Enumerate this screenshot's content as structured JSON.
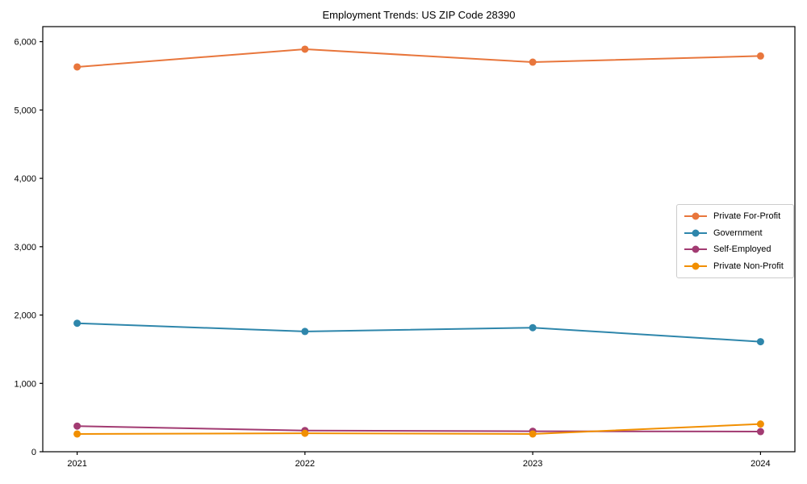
{
  "chart_data": {
    "type": "line",
    "title": "Employment Trends: US ZIP Code 28390",
    "categories": [
      "2021",
      "2022",
      "2023",
      "2024"
    ],
    "series": [
      {
        "name": "Private For-Profit",
        "color": "#E8763C",
        "values": [
          5630,
          5890,
          5700,
          5790
        ]
      },
      {
        "name": "Government",
        "color": "#2E86AB",
        "values": [
          1880,
          1760,
          1815,
          1610
        ]
      },
      {
        "name": "Self-Employed",
        "color": "#A23B72",
        "values": [
          375,
          310,
          300,
          295
        ]
      },
      {
        "name": "Private Non-Profit",
        "color": "#F18F01",
        "values": [
          260,
          270,
          260,
          405
        ]
      }
    ],
    "xlabel": "",
    "ylabel": "",
    "ylim": [
      0,
      6220
    ],
    "yticks": [
      0,
      1000,
      2000,
      3000,
      4000,
      5000,
      6000
    ],
    "ytick_labels": [
      "0",
      "1,000",
      "2,000",
      "3,000",
      "4,000",
      "5,000",
      "6,000"
    ],
    "grid": false,
    "marker": "circle",
    "legend_position": "right-middle",
    "frame_color": "#000000",
    "text_color": "#000000"
  }
}
